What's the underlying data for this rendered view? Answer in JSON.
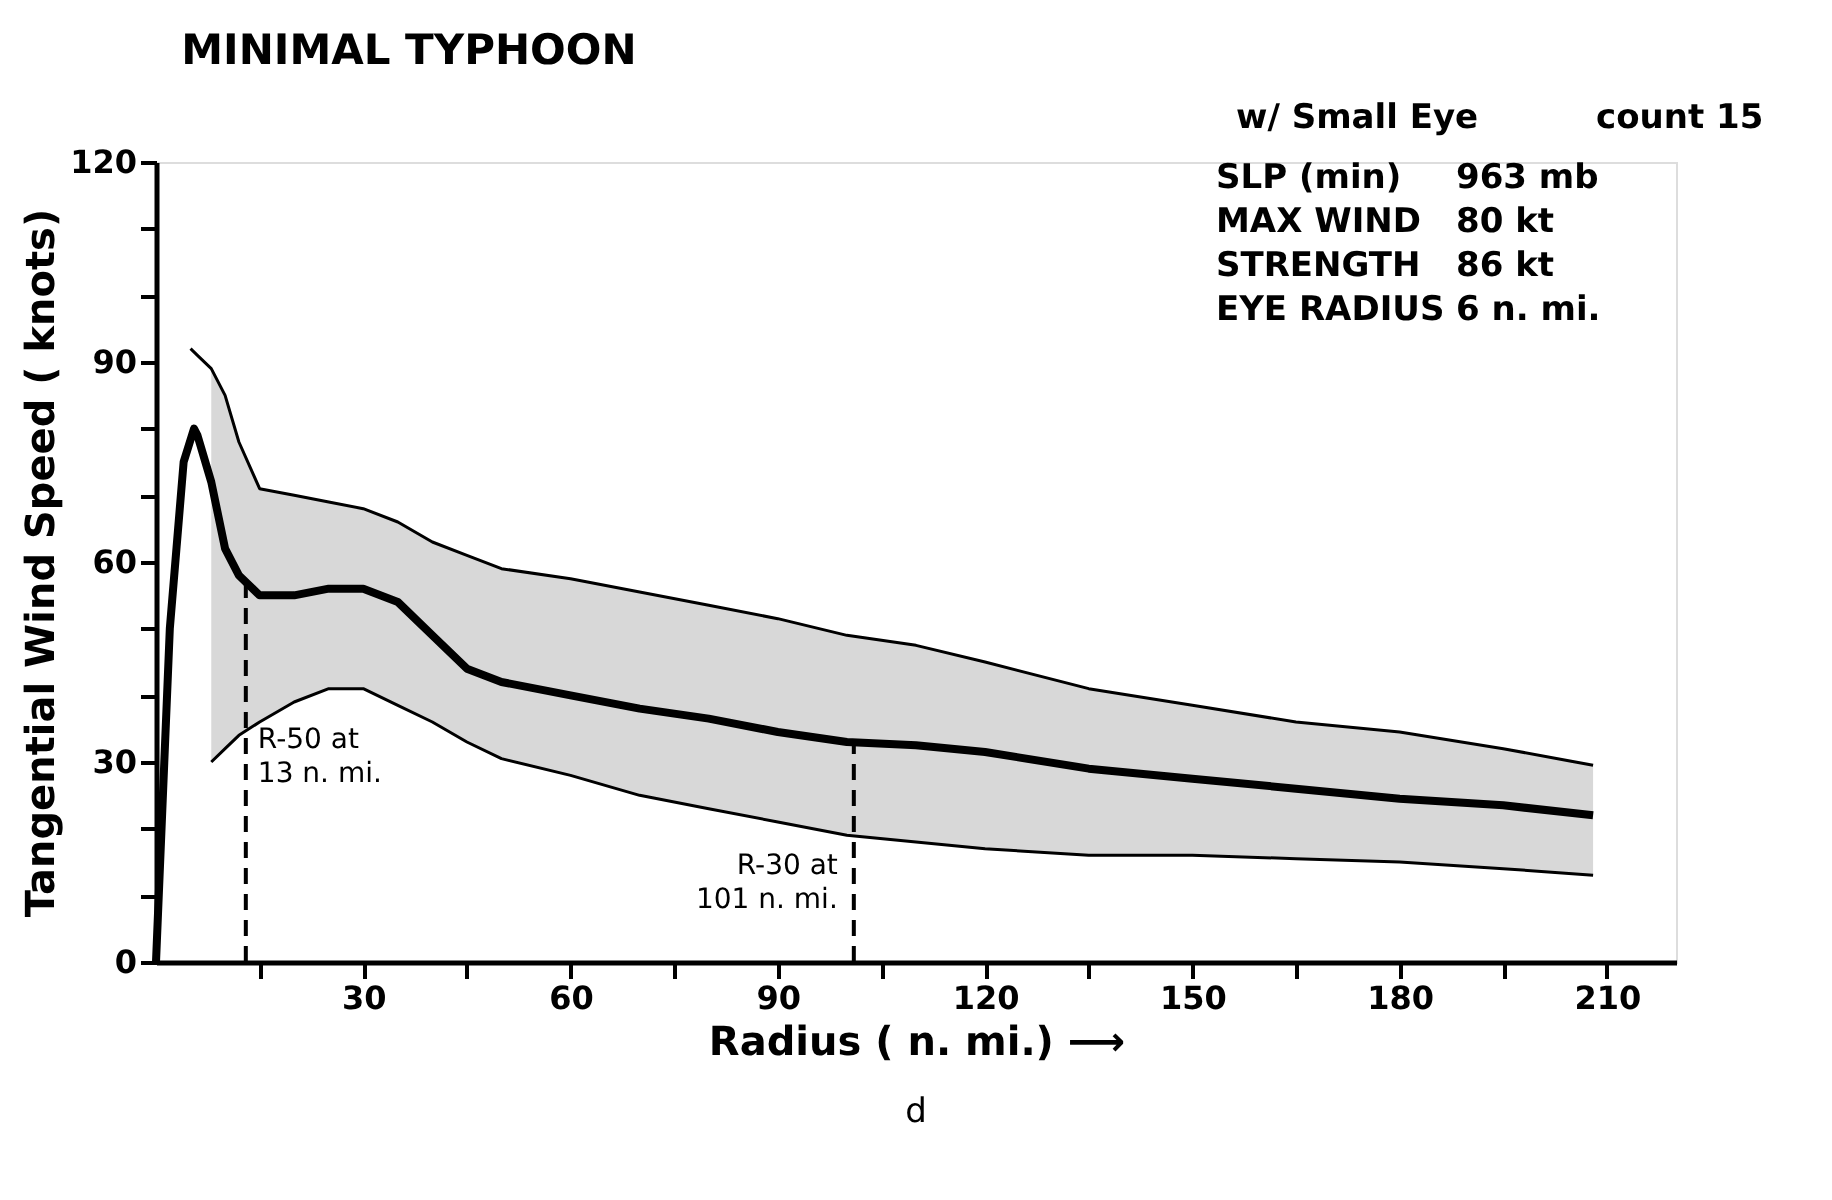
{
  "chart_data": {
    "type": "line",
    "title": "MINIMAL TYPHOON",
    "xlabel": "Radius ( n. mi.) ⟶",
    "ylabel": "Tangential Wind Speed ( knots)",
    "xlim": [
      0,
      220
    ],
    "ylim": [
      0,
      120
    ],
    "xticks": [
      {
        "value": 15,
        "label": null
      },
      30,
      {
        "value": 45,
        "label": null
      },
      60,
      {
        "value": 75,
        "label": null
      },
      90,
      {
        "value": 105,
        "label": null
      },
      120,
      {
        "value": 135,
        "label": null
      },
      150,
      {
        "value": 165,
        "label": null
      },
      180,
      {
        "value": 195,
        "label": null
      },
      210
    ],
    "yticks": [
      0,
      {
        "value": 10,
        "label": null
      },
      {
        "value": 20,
        "label": null
      },
      30,
      {
        "value": 40,
        "label": null
      },
      {
        "value": 50,
        "label": null
      },
      60,
      {
        "value": 70,
        "label": null
      },
      {
        "value": 80,
        "label": null
      },
      90,
      {
        "value": 100,
        "label": null
      },
      {
        "value": 110,
        "label": null
      },
      120
    ],
    "grid": false,
    "marker": "none",
    "line_style": "solid",
    "series": [
      {
        "color": "#000000",
        "x": [
          0,
          2,
          4,
          5.5,
          6,
          8,
          10,
          12,
          15,
          20,
          25,
          30,
          35,
          40,
          45,
          50,
          60,
          70,
          80,
          90,
          100,
          110,
          120,
          135,
          150,
          165,
          180,
          195,
          208
        ],
        "values": [
          0,
          50,
          75,
          80,
          79,
          72,
          62,
          58,
          55,
          55,
          56,
          56,
          54,
          49,
          44,
          42,
          40,
          38,
          36.5,
          34.5,
          33,
          32.5,
          31.5,
          29,
          27.5,
          26,
          24.5,
          23.5,
          22
        ],
        "lower": [
          null,
          null,
          null,
          null,
          null,
          30,
          32,
          34,
          36,
          39,
          41,
          41,
          38.5,
          36,
          33,
          30.5,
          28,
          25,
          23,
          21,
          19,
          18,
          17,
          16,
          16,
          15.5,
          15,
          14,
          13
        ],
        "upper": [
          null,
          null,
          null,
          null,
          null,
          89,
          85,
          78,
          71,
          70,
          69,
          68,
          66,
          63,
          61,
          59,
          57.5,
          55.5,
          53.5,
          51.5,
          49,
          47.5,
          45,
          41,
          38.5,
          36,
          34.5,
          32,
          29.5
        ]
      },
      {
        "color": "#000000",
        "x": [
          8,
          10,
          12,
          15,
          20,
          25,
          30,
          35,
          40,
          45,
          50,
          60,
          70,
          80,
          90,
          100,
          110,
          120,
          135,
          150,
          165,
          180,
          195,
          208
        ],
        "values": [
          30,
          32,
          34,
          36,
          39,
          41,
          41,
          38.5,
          36,
          33,
          30.5,
          28,
          25,
          23,
          21,
          19,
          18,
          17,
          16,
          16,
          15.5,
          15,
          14,
          13
        ]
      },
      {
        "color": "#000000",
        "x": [
          5,
          6,
          8,
          10,
          12,
          15,
          20,
          25,
          30,
          35,
          40,
          45,
          50,
          60,
          70,
          80,
          90,
          100,
          110,
          120,
          135,
          150,
          165,
          180,
          195,
          208
        ],
        "values": [
          92,
          91,
          89,
          85,
          78,
          71,
          70,
          69,
          68,
          66,
          63,
          61,
          59,
          57.5,
          55.5,
          53.5,
          51.5,
          49,
          47.5,
          45,
          41,
          38.5,
          36,
          34.5,
          32,
          29.5
        ]
      }
    ],
    "ref_lines": [
      {
        "axis": "x",
        "value": 13,
        "label": "R-50 at\n13 n. mi.",
        "line_style": "dashed",
        "color": "#000000"
      },
      {
        "axis": "x",
        "value": 101,
        "label": "R-30 at\n101 n. mi.",
        "line_style": "dashed",
        "color": "#000000"
      }
    ],
    "annotations": [
      "w/ Small Eye",
      "count 15",
      "SLP (min)",
      "963 mb",
      "MAX WIND",
      "80 kt",
      "STRENGTH",
      "86 kt",
      "EYE RADIUS",
      "6 n. mi.",
      "d"
    ]
  }
}
